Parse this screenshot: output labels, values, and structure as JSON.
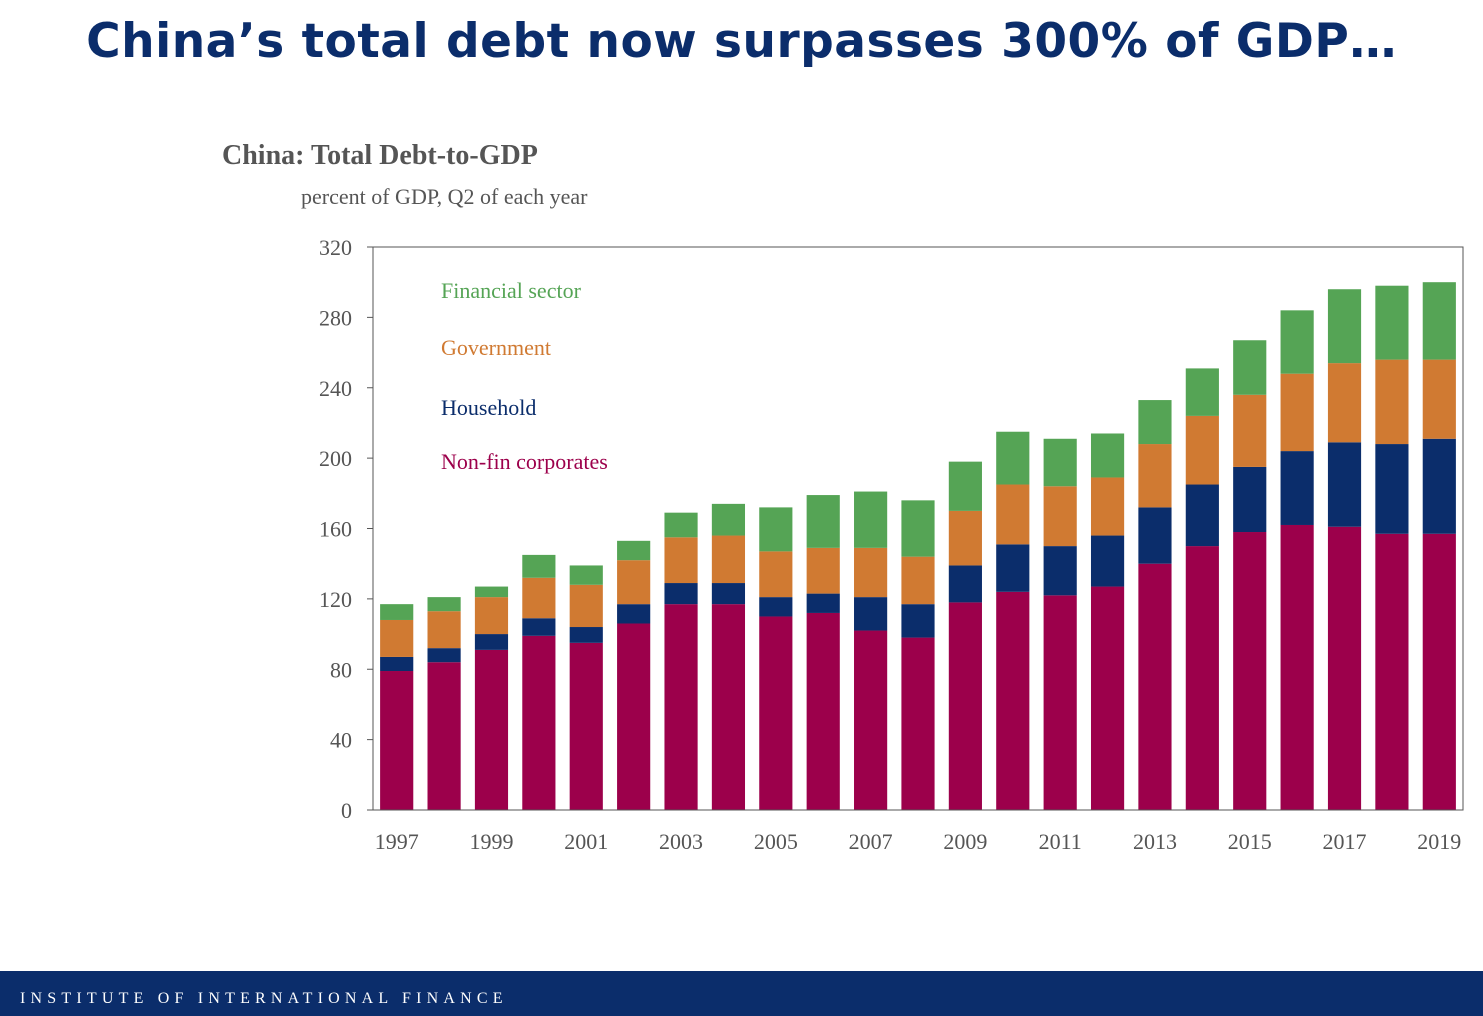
{
  "slide_title": "China’s total debt now surpasses 300% of GDP…",
  "footer": {
    "org_name": "INSTITUTE OF INTERNATIONAL FINANCE"
  },
  "chart_data": {
    "type": "bar",
    "stacked": true,
    "title": "China: Total Debt-to-GDP",
    "subtitle": "percent of GDP, Q2 of each year",
    "xlabel": "",
    "ylabel": "",
    "ylim": [
      0,
      320
    ],
    "yticks": [
      0,
      40,
      80,
      120,
      160,
      200,
      240,
      280,
      320
    ],
    "x_tick_labels": [
      "1997",
      "1999",
      "2001",
      "2003",
      "2005",
      "2007",
      "2009",
      "2011",
      "2013",
      "2015",
      "2017",
      "2019"
    ],
    "categories": [
      "1997",
      "1998",
      "1999",
      "2000",
      "2001",
      "2002",
      "2003",
      "2004",
      "2005",
      "2006",
      "2007",
      "2008",
      "2009",
      "2010",
      "2011",
      "2012",
      "2013",
      "2014",
      "2015",
      "2016",
      "2017",
      "2018",
      "2019"
    ],
    "grid": false,
    "legend_placement": "top-left, inside plot",
    "series": [
      {
        "name": "Non-fin corporates",
        "color": "#9c004b",
        "values": [
          79,
          84,
          91,
          99,
          95,
          106,
          117,
          117,
          110,
          112,
          102,
          98,
          118,
          124,
          122,
          127,
          140,
          150,
          158,
          162,
          161,
          157,
          157
        ]
      },
      {
        "name": "Household",
        "color": "#0b2d6b",
        "values": [
          8,
          8,
          9,
          10,
          9,
          11,
          12,
          12,
          11,
          11,
          19,
          19,
          21,
          27,
          28,
          29,
          32,
          35,
          37,
          42,
          48,
          51,
          54
        ]
      },
      {
        "name": "Government",
        "color": "#d07a32",
        "values": [
          21,
          21,
          21,
          23,
          24,
          25,
          26,
          27,
          26,
          26,
          28,
          27,
          31,
          34,
          34,
          33,
          36,
          39,
          41,
          44,
          45,
          48,
          45
        ]
      },
      {
        "name": "Financial sector",
        "color": "#55a455",
        "values": [
          9,
          8,
          6,
          13,
          11,
          11,
          14,
          18,
          25,
          30,
          32,
          32,
          28,
          30,
          27,
          25,
          25,
          27,
          31,
          36,
          42,
          42,
          44
        ]
      }
    ]
  }
}
